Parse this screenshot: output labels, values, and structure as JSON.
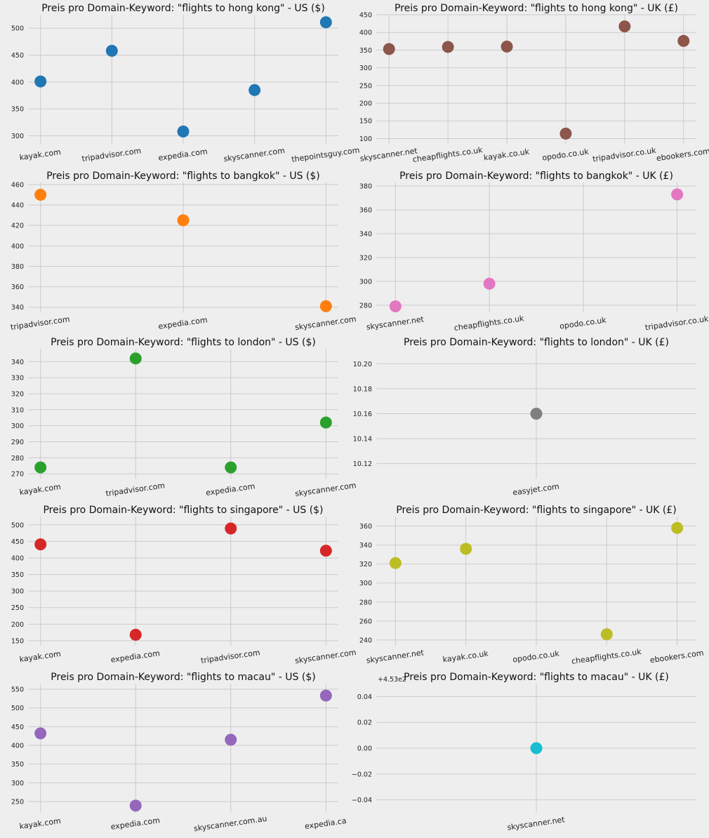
{
  "chart_data": [
    {
      "type": "scatter",
      "title": "Preis pro Domain-Keyword: \"flights to hong kong\" - US ($)",
      "categories": [
        "kayak.com",
        "tripadvisor.com",
        "expedia.com",
        "skyscanner.com",
        "thepointsguy.com"
      ],
      "values": [
        401,
        458,
        308,
        385,
        511
      ],
      "color": "#1f77b4",
      "ylim": [
        285,
        525
      ],
      "yticks": [
        300,
        350,
        400,
        450,
        500
      ],
      "ytick_labels": [
        "300",
        "350",
        "400",
        "450",
        "500"
      ],
      "grid": true
    },
    {
      "type": "scatter",
      "title": "Preis pro Domain-Keyword: \"flights to hong kong\" - UK (£)",
      "categories": [
        "skyscanner.net",
        "cheapflights.co.uk",
        "kayak.co.uk",
        "opodo.co.uk",
        "tripadvisor.co.uk",
        "ebookers.com"
      ],
      "values": [
        353,
        359,
        360,
        114,
        417,
        376
      ],
      "color": "#8c564b",
      "ylim": [
        85,
        450
      ],
      "yticks": [
        100,
        150,
        200,
        250,
        300,
        350,
        400,
        450
      ],
      "ytick_labels": [
        "100",
        "150",
        "200",
        "250",
        "300",
        "350",
        "400",
        "450"
      ],
      "grid": true
    },
    {
      "type": "scatter",
      "title": "Preis pro Domain-Keyword: \"flights to bangkok\" - US ($)",
      "categories": [
        "tripadvisor.com",
        "expedia.com",
        "skyscanner.com"
      ],
      "values": [
        450,
        425,
        341
      ],
      "color": "#ff7f0e",
      "ylim": [
        335,
        462
      ],
      "yticks": [
        340,
        360,
        380,
        400,
        420,
        440,
        460
      ],
      "ytick_labels": [
        "340",
        "360",
        "380",
        "400",
        "420",
        "440",
        "460"
      ],
      "grid": true
    },
    {
      "type": "scatter",
      "title": "Preis pro Domain-Keyword: \"flights to bangkok\" - UK (£)",
      "categories": [
        "skyscanner.net",
        "cheapflights.co.uk",
        "opodo.co.uk",
        "tripadvisor.co.uk"
      ],
      "values": [
        279,
        298,
        null,
        373
      ],
      "color": "#e377c2",
      "ylim": [
        274,
        383
      ],
      "yticks": [
        280,
        300,
        320,
        340,
        360,
        380
      ],
      "ytick_labels": [
        "280",
        "300",
        "320",
        "340",
        "360",
        "380"
      ],
      "grid": true
    },
    {
      "type": "scatter",
      "title": "Preis pro Domain-Keyword: \"flights to london\" - US ($)",
      "categories": [
        "kayak.com",
        "tripadvisor.com",
        "expedia.com",
        "skyscanner.com"
      ],
      "values": [
        274,
        342,
        274,
        302
      ],
      "color": "#2ca02c",
      "ylim": [
        267,
        348
      ],
      "yticks": [
        270,
        280,
        290,
        300,
        310,
        320,
        330,
        340
      ],
      "ytick_labels": [
        "270",
        "280",
        "290",
        "300",
        "310",
        "320",
        "330",
        "340"
      ],
      "grid": true
    },
    {
      "type": "scatter",
      "title": "Preis pro Domain-Keyword: \"flights to london\" - UK (£)",
      "categories": [
        "easyjet.com"
      ],
      "values": [
        10.16
      ],
      "color": "#7f7f7f",
      "ylim": [
        10.108,
        10.212
      ],
      "yticks": [
        10.12,
        10.14,
        10.16,
        10.18,
        10.2
      ],
      "ytick_labels": [
        "10.12",
        "10.14",
        "10.16",
        "10.18",
        "10.20"
      ],
      "grid": true
    },
    {
      "type": "scatter",
      "title": "Preis pro Domain-Keyword: \"flights to singapore\" - US ($)",
      "categories": [
        "kayak.com",
        "expedia.com",
        "tripadvisor.com",
        "skyscanner.com"
      ],
      "values": [
        441,
        168,
        489,
        422
      ],
      "color": "#d62728",
      "ylim": [
        135,
        525
      ],
      "yticks": [
        150,
        200,
        250,
        300,
        350,
        400,
        450,
        500
      ],
      "ytick_labels": [
        "150",
        "200",
        "250",
        "300",
        "350",
        "400",
        "450",
        "500"
      ],
      "grid": true
    },
    {
      "type": "scatter",
      "title": "Preis pro Domain-Keyword: \"flights to singapore\" - UK (£)",
      "categories": [
        "skyscanner.net",
        "kayak.co.uk",
        "opodo.co.uk",
        "cheapflights.co.uk",
        "ebookers.com"
      ],
      "values": [
        321,
        336,
        null,
        246,
        358
      ],
      "color": "#bcbd22",
      "ylim": [
        234,
        370
      ],
      "yticks": [
        240,
        260,
        280,
        300,
        320,
        340,
        360
      ],
      "ytick_labels": [
        "240",
        "260",
        "280",
        "300",
        "320",
        "340",
        "360"
      ],
      "grid": true
    },
    {
      "type": "scatter",
      "title": "Preis pro Domain-Keyword: \"flights to macau\" - US ($)",
      "categories": [
        "kayak.com",
        "expedia.com",
        "skyscanner.com.au",
        "expedia.ca"
      ],
      "values": [
        432,
        239,
        415,
        533
      ],
      "color": "#9467bd",
      "ylim": [
        220,
        565
      ],
      "yticks": [
        250,
        300,
        350,
        400,
        450,
        500,
        550
      ],
      "ytick_labels": [
        "250",
        "300",
        "350",
        "400",
        "450",
        "500",
        "550"
      ],
      "grid": true
    },
    {
      "type": "scatter",
      "title": "Preis pro Domain-Keyword: \"flights to macau\" - UK (£)",
      "categories": [
        "skyscanner.net"
      ],
      "values": [
        0
      ],
      "color": "#17becf",
      "ylim": [
        -0.05,
        0.05
      ],
      "yticks": [
        -0.04,
        -0.02,
        0,
        0.02,
        0.04
      ],
      "ytick_labels": [
        "−0.04",
        "−0.02",
        "0.00",
        "0.02",
        "0.04"
      ],
      "y_offset_text": "+4.53e2",
      "grid": true
    }
  ]
}
